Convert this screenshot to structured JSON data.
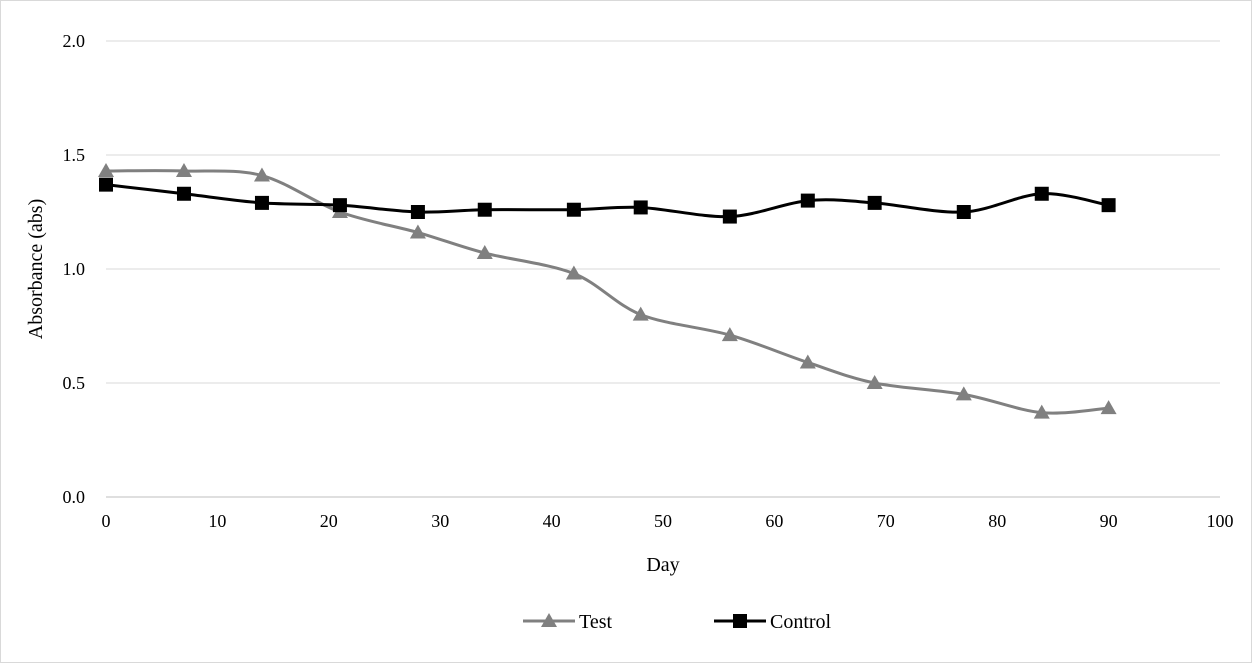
{
  "chart_data": {
    "type": "line",
    "title": "",
    "xlabel": "Day",
    "ylabel": "Absorbance (abs)",
    "xlim": [
      0,
      100
    ],
    "ylim": [
      0,
      2
    ],
    "xticks": [
      0,
      10,
      20,
      30,
      40,
      50,
      60,
      70,
      80,
      90,
      100
    ],
    "xtick_labels": [
      "0",
      "10",
      "20",
      "30",
      "40",
      "50",
      "60",
      "70",
      "80",
      "90",
      "100"
    ],
    "yticks": [
      0,
      0.5,
      1,
      1.5,
      2
    ],
    "ytick_labels": [
      "0.0",
      "0.5",
      "1.0",
      "1.5",
      "2.0"
    ],
    "grid": "horizontal",
    "smooth": true,
    "legend_position": "bottom",
    "series": [
      {
        "name": "Test",
        "color": "#808080",
        "marker": "triangle",
        "x": [
          0,
          7,
          14,
          21,
          28,
          34,
          42,
          48,
          56,
          63,
          69,
          77,
          84,
          90
        ],
        "values": [
          1.43,
          1.43,
          1.41,
          1.25,
          1.16,
          1.07,
          0.98,
          0.8,
          0.71,
          0.59,
          0.5,
          0.45,
          0.37,
          0.39
        ]
      },
      {
        "name": "Control",
        "color": "#000000",
        "marker": "square",
        "x": [
          0,
          7,
          14,
          21,
          28,
          34,
          42,
          48,
          56,
          63,
          69,
          77,
          84,
          90
        ],
        "values": [
          1.37,
          1.33,
          1.29,
          1.28,
          1.25,
          1.26,
          1.26,
          1.27,
          1.23,
          1.3,
          1.29,
          1.25,
          1.33,
          1.28
        ]
      }
    ]
  }
}
